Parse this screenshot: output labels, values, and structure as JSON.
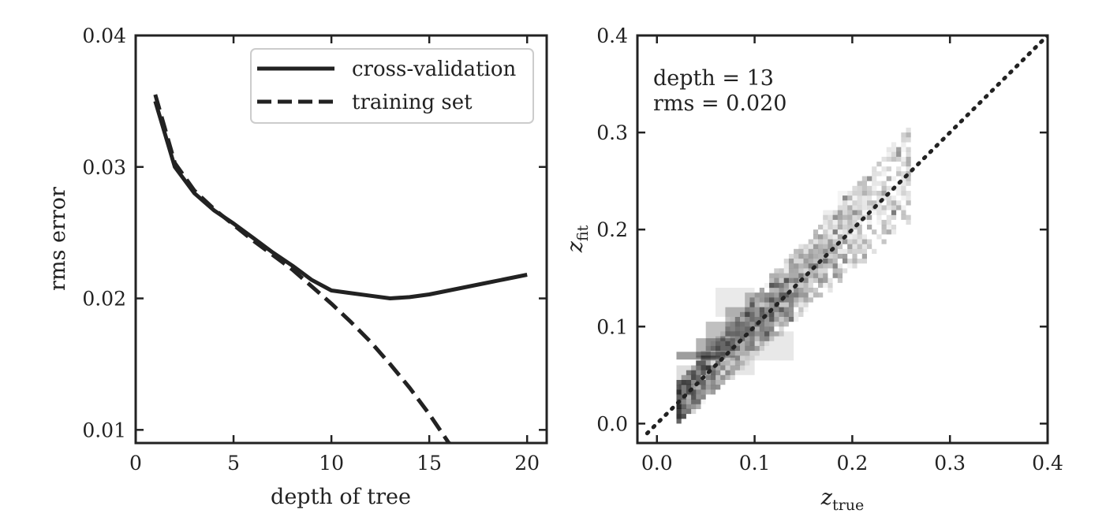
{
  "chart_data": [
    {
      "type": "line",
      "xlabel": "depth of tree",
      "ylabel": "rms error",
      "xlim": [
        0,
        21
      ],
      "ylim": [
        0.009,
        0.04
      ],
      "xticks": [
        "0",
        "5",
        "10",
        "15",
        "20"
      ],
      "xtick_values": [
        0,
        5,
        10,
        15,
        20
      ],
      "yticks": [
        "0.01",
        "0.02",
        "0.03",
        "0.04"
      ],
      "ytick_values": [
        0.01,
        0.02,
        0.03,
        0.04
      ],
      "legend_position": "top-right",
      "series": [
        {
          "name": "cross-validation",
          "style": "solid",
          "x": [
            1,
            2,
            3,
            4,
            5,
            6,
            7,
            8,
            9,
            10,
            11,
            12,
            13,
            14,
            15,
            16,
            17,
            18,
            19,
            20
          ],
          "y": [
            0.035,
            0.03,
            0.028,
            0.0267,
            0.0257,
            0.0246,
            0.0235,
            0.0225,
            0.0214,
            0.0206,
            0.0204,
            0.0202,
            0.02,
            0.0201,
            0.0203,
            0.0206,
            0.0209,
            0.0212,
            0.0215,
            0.0218
          ]
        },
        {
          "name": "training set",
          "style": "dashed",
          "x": [
            1,
            2,
            3,
            4,
            5,
            6,
            7,
            8,
            9,
            10,
            11,
            12,
            13,
            14,
            15,
            16,
            16.8
          ],
          "y": [
            0.0355,
            0.0303,
            0.0282,
            0.0268,
            0.0256,
            0.0244,
            0.0233,
            0.0222,
            0.0209,
            0.0196,
            0.0182,
            0.0167,
            0.015,
            0.0132,
            0.0112,
            0.009,
            0.0085
          ]
        }
      ]
    },
    {
      "type": "heatmap",
      "xlabel_main": "z",
      "xlabel_sub": "true",
      "ylabel_main": "z",
      "ylabel_sub": "fit",
      "xlim": [
        -0.02,
        0.4
      ],
      "ylim": [
        -0.02,
        0.4
      ],
      "xticks": [
        "0.0",
        "0.1",
        "0.2",
        "0.3",
        "0.4"
      ],
      "xtick_values": [
        0.0,
        0.1,
        0.2,
        0.3,
        0.4
      ],
      "yticks": [
        "0.0",
        "0.1",
        "0.2",
        "0.3",
        "0.4"
      ],
      "ytick_values": [
        0.0,
        0.1,
        0.2,
        0.3,
        0.4
      ],
      "annotations": [
        "depth = 13",
        "rms = 0.020"
      ],
      "reference_line": {
        "style": "dotted",
        "x": [
          -0.01,
          0.4
        ],
        "y": [
          -0.01,
          0.4
        ]
      },
      "density_note": "2D histogram concentrated along the diagonal between z_true 0.02 and 0.25",
      "density_bins": [
        {
          "x": 0.045,
          "y": 0.07,
          "w": 0.05,
          "h": 0.008,
          "level": 0.85
        },
        {
          "x": 0.06,
          "y": 0.078,
          "w": 0.04,
          "h": 0.02,
          "level": 0.65
        },
        {
          "x": 0.075,
          "y": 0.09,
          "w": 0.05,
          "h": 0.03,
          "level": 0.55
        },
        {
          "x": 0.095,
          "y": 0.105,
          "w": 0.05,
          "h": 0.03,
          "level": 0.55
        },
        {
          "x": 0.115,
          "y": 0.12,
          "w": 0.05,
          "h": 0.03,
          "level": 0.5
        },
        {
          "x": 0.135,
          "y": 0.14,
          "w": 0.04,
          "h": 0.03,
          "level": 0.45
        },
        {
          "x": 0.155,
          "y": 0.16,
          "w": 0.04,
          "h": 0.03,
          "level": 0.35
        },
        {
          "x": 0.17,
          "y": 0.175,
          "w": 0.03,
          "h": 0.03,
          "level": 0.25
        },
        {
          "x": 0.04,
          "y": 0.045,
          "w": 0.04,
          "h": 0.03,
          "level": 0.3
        },
        {
          "x": 0.03,
          "y": 0.035,
          "w": 0.015,
          "h": 0.012,
          "level": 0.25
        },
        {
          "x": 0.11,
          "y": 0.08,
          "w": 0.06,
          "h": 0.03,
          "level": 0.2
        },
        {
          "x": 0.08,
          "y": 0.125,
          "w": 0.04,
          "h": 0.03,
          "level": 0.18
        },
        {
          "x": 0.185,
          "y": 0.205,
          "w": 0.03,
          "h": 0.03,
          "level": 0.15
        },
        {
          "x": 0.2,
          "y": 0.225,
          "w": 0.03,
          "h": 0.03,
          "level": 0.1
        },
        {
          "x": 0.07,
          "y": 0.06,
          "w": 0.06,
          "h": 0.02,
          "level": 0.22
        }
      ]
    }
  ]
}
